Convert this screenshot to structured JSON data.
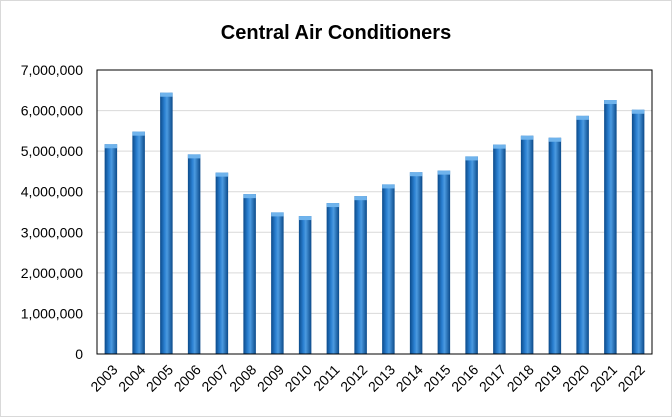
{
  "chart_data": {
    "type": "bar",
    "title": "Central Air Conditioners",
    "xlabel": "",
    "ylabel": "",
    "categories": [
      "2003",
      "2004",
      "2005",
      "2006",
      "2007",
      "2008",
      "2009",
      "2010",
      "2011",
      "2012",
      "2013",
      "2014",
      "2015",
      "2016",
      "2017",
      "2018",
      "2019",
      "2020",
      "2021",
      "2022"
    ],
    "values": [
      5170000,
      5480000,
      6440000,
      4920000,
      4470000,
      3940000,
      3490000,
      3400000,
      3720000,
      3890000,
      4180000,
      4480000,
      4520000,
      4870000,
      5160000,
      5380000,
      5330000,
      5870000,
      6260000,
      6020000
    ],
    "ylim": [
      0,
      7000000
    ],
    "yticks": [
      0,
      1000000,
      2000000,
      3000000,
      4000000,
      5000000,
      6000000,
      7000000
    ],
    "ytick_labels": [
      "0",
      "1,000,000",
      "2,000,000",
      "3,000,000",
      "4,000,000",
      "5,000,000",
      "6,000,000",
      "7,000,000"
    ],
    "grid": true,
    "legend": "none",
    "colors": {
      "bar": "#1f6fbf",
      "bar_dark": "#0b4a8a",
      "bar_light": "#6fb3ec",
      "gridline": "#d9d9d9",
      "axis": "#000000",
      "text": "#000000"
    }
  }
}
